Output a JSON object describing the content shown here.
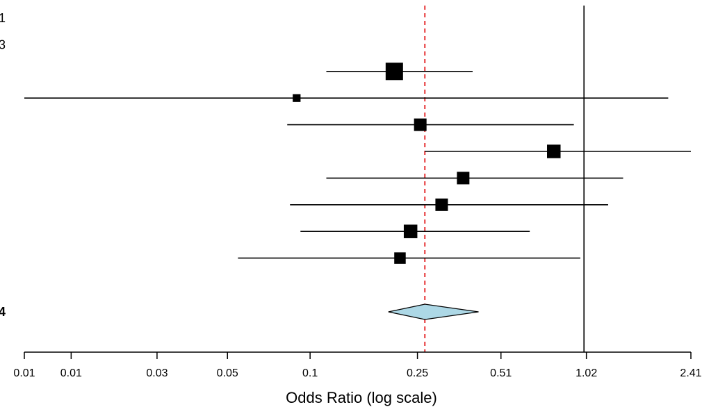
{
  "chart_data": {
    "type": "forest",
    "xlabel": "Odds Ratio (log scale)",
    "x_scale": "log",
    "xlim": [
      0.01,
      2.41
    ],
    "x_ticks": [
      {
        "value": 0.01,
        "label": "0.01"
      },
      {
        "value": 0.0147,
        "label": "0.01"
      },
      {
        "value": 0.0298,
        "label": "0.03"
      },
      {
        "value": 0.0532,
        "label": "0.05"
      },
      {
        "value": 0.105,
        "label": "0.1"
      },
      {
        "value": 0.254,
        "label": "0.25"
      },
      {
        "value": 0.505,
        "label": "0.51"
      },
      {
        "value": 1.02,
        "label": "1.02"
      },
      {
        "value": 2.41,
        "label": "2.41"
      }
    ],
    "reference_line": 1.0,
    "pooled_estimate_line": 0.27,
    "row_labels": [
      "1",
      "3",
      "",
      "",
      "",
      "",
      "",
      "",
      "",
      "4"
    ],
    "studies": [
      {
        "or": 0.21,
        "lo": 0.12,
        "hi": 0.4,
        "weight": 1.0
      },
      {
        "or": 0.094,
        "lo": 0.01,
        "hi": 2.0,
        "weight": 0.45
      },
      {
        "or": 0.26,
        "lo": 0.087,
        "hi": 0.92,
        "weight": 0.72
      },
      {
        "or": 0.78,
        "lo": 0.27,
        "hi": 2.41,
        "weight": 0.78
      },
      {
        "or": 0.37,
        "lo": 0.12,
        "hi": 1.38,
        "weight": 0.72
      },
      {
        "or": 0.31,
        "lo": 0.089,
        "hi": 1.22,
        "weight": 0.72
      },
      {
        "or": 0.24,
        "lo": 0.097,
        "hi": 0.64,
        "weight": 0.78
      },
      {
        "or": 0.22,
        "lo": 0.058,
        "hi": 0.97,
        "weight": 0.66
      }
    ],
    "pooled": {
      "or": 0.27,
      "lo": 0.2,
      "hi": 0.42
    },
    "colors": {
      "marker": "#000000",
      "diamond_fill": "#add8e6",
      "pooled_line": "#e31a1c",
      "axis": "#000000"
    }
  }
}
